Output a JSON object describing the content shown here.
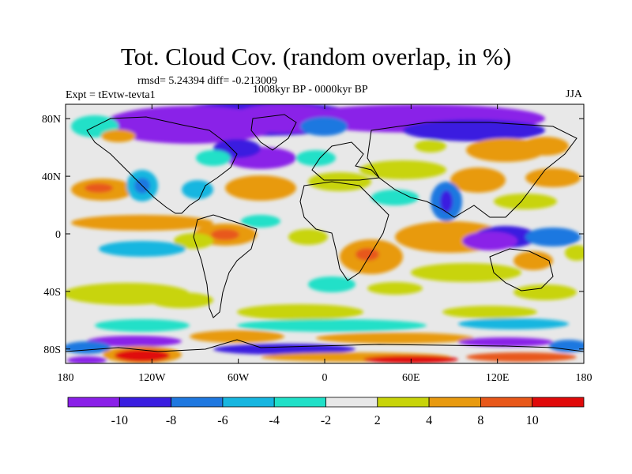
{
  "header": {
    "title": "Tot. Cloud Cov. (random overlap, in %)",
    "stats": "rmsd= 5.24394 diff= -0.213009",
    "period": "1008kyr BP - 0000kyr BP",
    "experiment": "Expt = tEvtw-tevta1",
    "season": "JJA"
  },
  "map": {
    "projection": "cylindrical-equidistant",
    "lon_range": [
      -180,
      180
    ],
    "lat_range": [
      -90,
      90
    ],
    "x_ticks": [
      {
        "lon": -180,
        "label": "180"
      },
      {
        "lon": -120,
        "label": "120W"
      },
      {
        "lon": -60,
        "label": "60W"
      },
      {
        "lon": 0,
        "label": "0"
      },
      {
        "lon": 60,
        "label": "60E"
      },
      {
        "lon": 120,
        "label": "120E"
      },
      {
        "lon": 180,
        "label": "180"
      }
    ],
    "y_ticks": [
      {
        "lat": 80,
        "label": "80N"
      },
      {
        "lat": 40,
        "label": "40N"
      },
      {
        "lat": 0,
        "label": "0"
      },
      {
        "lat": -40,
        "label": "40S"
      },
      {
        "lat": -80,
        "label": "80S"
      }
    ],
    "background_color": "#e8e8e8",
    "coastline_color": "#000000"
  },
  "colorbar": {
    "levels": [
      "-10",
      "-8",
      "-6",
      "-4",
      "-2",
      "2",
      "4",
      "8",
      "10"
    ],
    "colors": [
      "#8a20e8",
      "#3a1ee0",
      "#1f78e0",
      "#17b6e0",
      "#20e0c8",
      "#e8e8e8",
      "#c8d40a",
      "#e89a10",
      "#e8581a",
      "#e00a0a"
    ]
  }
}
